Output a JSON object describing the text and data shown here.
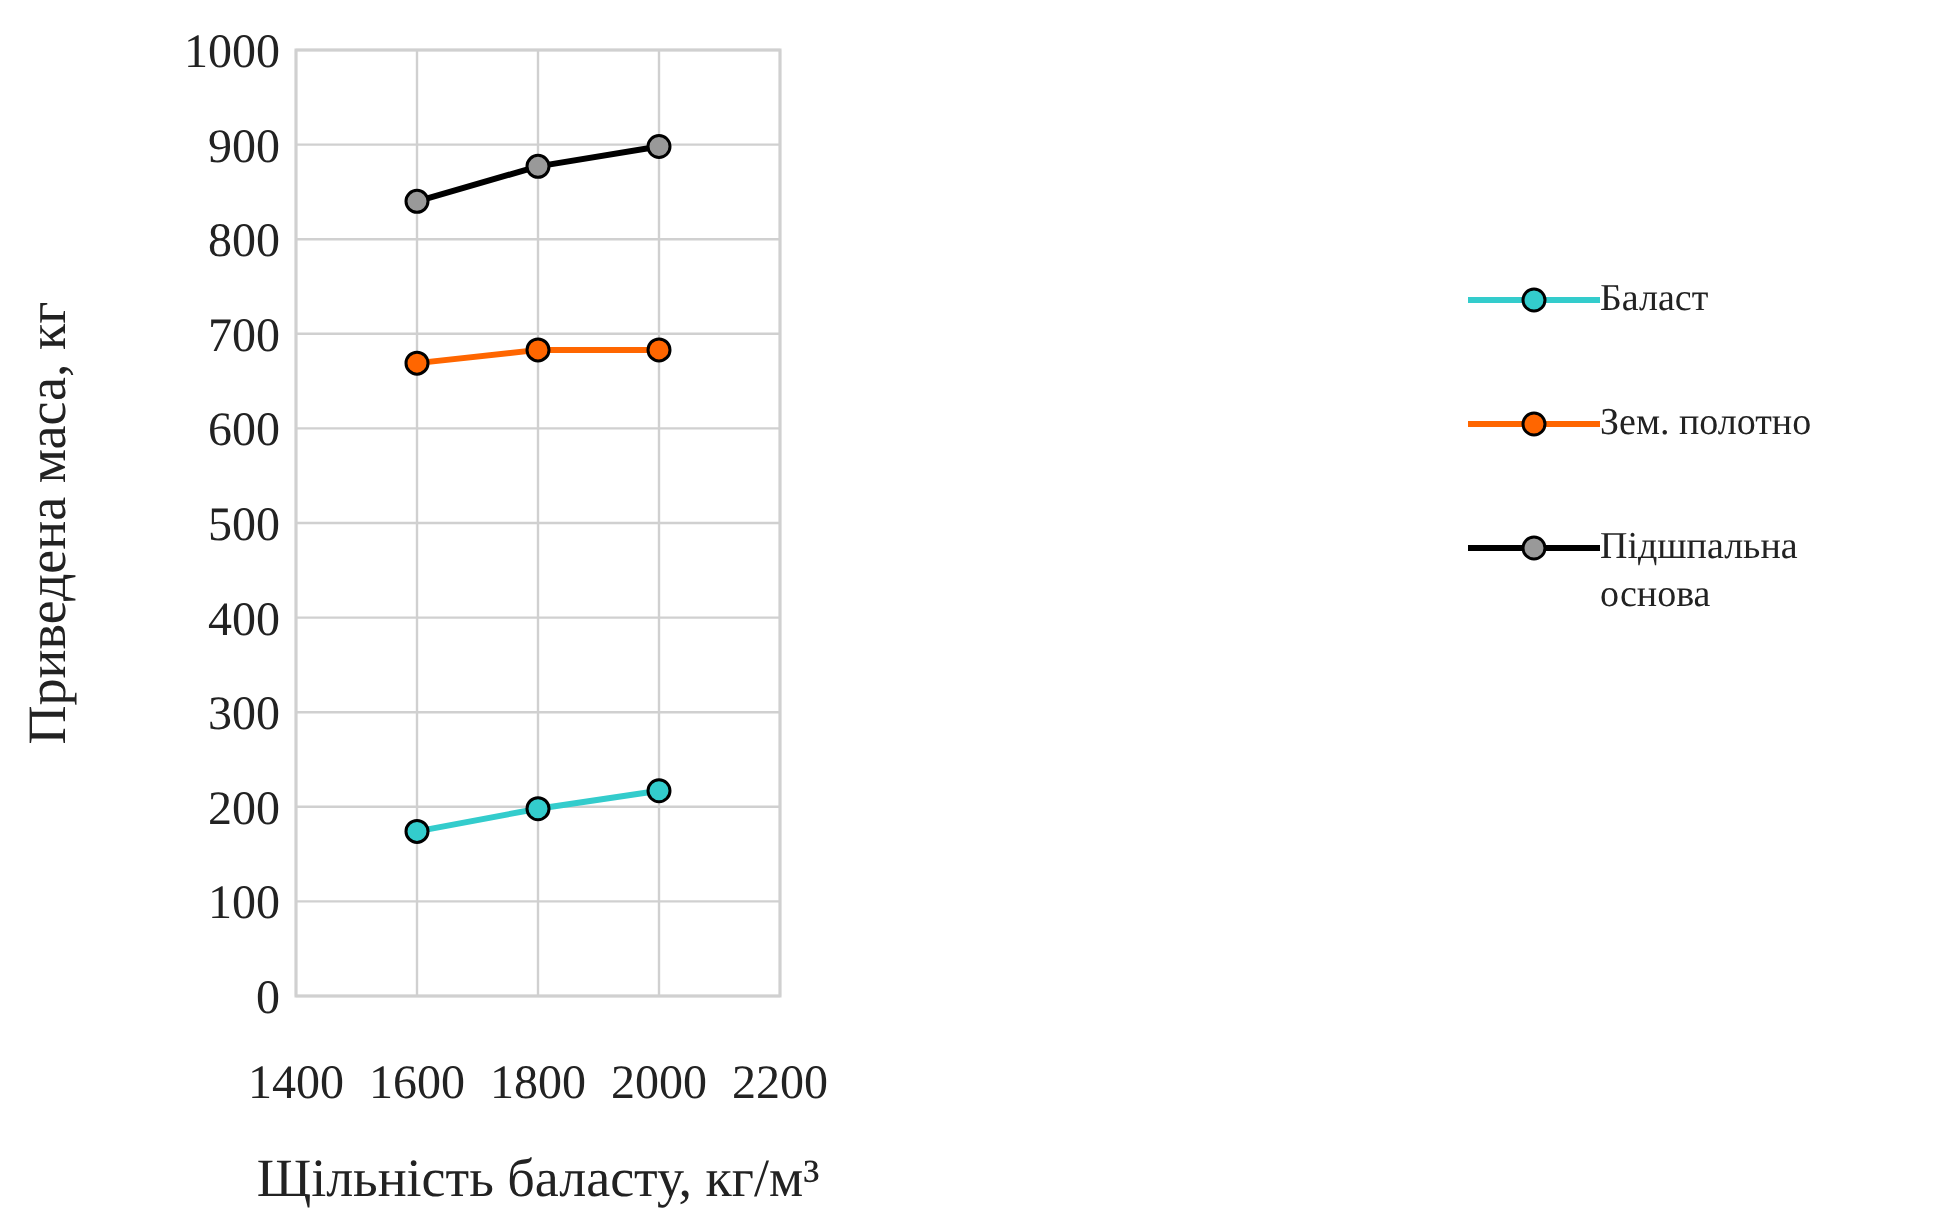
{
  "chart_data": {
    "type": "line",
    "xlabel": "Щільність баласту, кг/м³",
    "ylabel": "Приведена маса, кг",
    "x": [
      1600,
      1800,
      2000
    ],
    "series": [
      {
        "name": "Баласт",
        "color": "#33cccc",
        "values": [
          174,
          198,
          217
        ]
      },
      {
        "name": "Зем. полотно",
        "color": "#ff6600",
        "values": [
          669,
          683,
          683
        ]
      },
      {
        "name": "Підшпальна основа",
        "color": "#000000",
        "values": [
          840,
          877,
          898
        ]
      }
    ],
    "xlim": [
      1400,
      2200
    ],
    "xticks": [
      1400,
      1600,
      1800,
      2000,
      2200
    ],
    "ylim": [
      0,
      1000
    ],
    "yticks": [
      0,
      100,
      200,
      300,
      400,
      500,
      600,
      700,
      800,
      900,
      1000
    ],
    "grid": true,
    "legend": "right",
    "marker": "circle",
    "line_style": "solid"
  }
}
